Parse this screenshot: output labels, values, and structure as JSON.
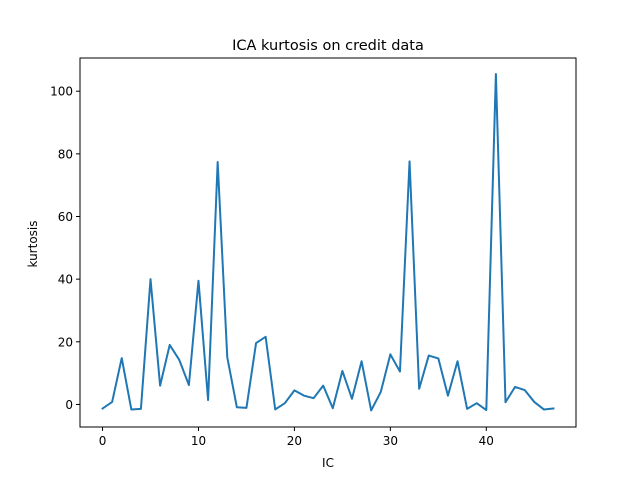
{
  "chart_data": {
    "type": "line",
    "title": "ICA kurtosis on credit data",
    "xlabel": "IC",
    "ylabel": "kurtosis",
    "xlim": [
      -2.35,
      49.35
    ],
    "ylim": [
      -7.2,
      110.6
    ],
    "xticks": [
      0,
      10,
      20,
      30,
      40
    ],
    "yticks": [
      0,
      20,
      40,
      60,
      80,
      100
    ],
    "grid": false,
    "series": [
      {
        "color": "#1f77b4",
        "x": [
          0,
          1,
          2,
          3,
          4,
          5,
          6,
          7,
          8,
          9,
          10,
          11,
          12,
          13,
          14,
          15,
          16,
          17,
          18,
          19,
          20,
          21,
          22,
          23,
          24,
          25,
          26,
          27,
          28,
          29,
          30,
          31,
          32,
          33,
          34,
          35,
          36,
          37,
          38,
          39,
          40,
          41,
          42,
          43,
          44,
          45,
          46,
          47
        ],
        "values": [
          -1.3,
          0.8,
          14.8,
          -1.6,
          -1.4,
          40.0,
          6.0,
          19.0,
          14.2,
          6.2,
          39.5,
          1.4,
          77.4,
          15.1,
          -0.9,
          -1.1,
          19.6,
          21.6,
          -1.6,
          0.4,
          4.5,
          2.8,
          2.0,
          6.0,
          -1.2,
          10.7,
          1.8,
          13.8,
          -1.9,
          4.0,
          16.0,
          10.5,
          77.6,
          5.0,
          15.6,
          14.7,
          2.8,
          13.8,
          -1.4,
          0.4,
          -1.8,
          105.5,
          0.7,
          5.6,
          4.6,
          0.8,
          -1.6,
          -1.3
        ]
      }
    ]
  }
}
